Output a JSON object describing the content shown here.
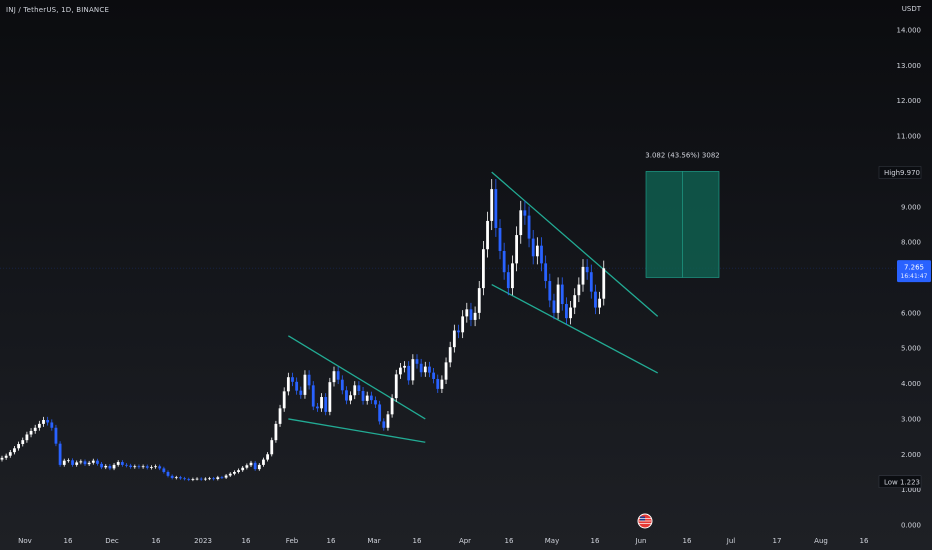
{
  "symbol_title": "INJ / TetherUS, 1D, BINANCE",
  "currency": "USDT",
  "colors": {
    "background": "#131519",
    "up_candle": "#ffffff",
    "down_candle": "#2962ff",
    "trendline": "#22ab94",
    "box_fill": "#0f5e4f",
    "box_border": "#22ab94",
    "price_label_bg": "#2962ff",
    "marker_bg": "#0f1216",
    "axis_text": "#d1d4dc"
  },
  "chart_data": {
    "type": "candlestick",
    "x_tick_labels": [
      "Nov",
      "16",
      "Dec",
      "16",
      "2023",
      "16",
      "Feb",
      "16",
      "Mar",
      "16",
      "Apr",
      "16",
      "May",
      "16",
      "Jun",
      "16",
      "Jul",
      "17",
      "Aug",
      "16"
    ],
    "y_tick_labels": [
      "0.000",
      "1.000",
      "2.000",
      "3.000",
      "4.000",
      "5.000",
      "6.000",
      "7.000",
      "8.000",
      "9.000",
      "10.000",
      "11.000",
      "12.000",
      "13.000",
      "14.000"
    ],
    "y_ticks": [
      0,
      1,
      2,
      3,
      4,
      5,
      6,
      7,
      8,
      9,
      10,
      11,
      12,
      13,
      14
    ],
    "ylim": [
      0,
      14.5
    ],
    "ohlc_close": [
      1.9,
      1.96,
      2.06,
      2.17,
      2.29,
      2.4,
      2.56,
      2.66,
      2.75,
      2.86,
      2.97,
      2.9,
      2.75,
      2.3,
      1.7,
      1.82,
      1.83,
      1.7,
      1.77,
      1.8,
      1.72,
      1.76,
      1.82,
      1.73,
      1.63,
      1.67,
      1.6,
      1.7,
      1.78,
      1.7,
      1.68,
      1.64,
      1.66,
      1.64,
      1.66,
      1.62,
      1.64,
      1.66,
      1.6,
      1.5,
      1.39,
      1.33,
      1.35,
      1.32,
      1.3,
      1.28,
      1.3,
      1.31,
      1.29,
      1.31,
      1.32,
      1.3,
      1.35,
      1.34,
      1.4,
      1.45,
      1.5,
      1.55,
      1.62,
      1.69,
      1.76,
      1.58,
      1.7,
      1.85,
      2.0,
      2.4,
      2.86,
      3.3,
      3.78,
      4.18,
      4.05,
      3.8,
      3.68,
      4.25,
      3.95,
      3.35,
      3.3,
      3.62,
      3.2,
      4.04,
      4.35,
      4.11,
      3.81,
      3.52,
      3.67,
      3.95,
      3.79,
      3.51,
      3.66,
      3.53,
      3.41,
      2.93,
      2.75,
      3.13,
      3.59,
      4.26,
      4.45,
      4.5,
      4.09,
      4.69,
      4.56,
      4.32,
      4.48,
      4.31,
      4.13,
      3.85,
      4.11,
      4.6,
      5.03,
      5.5,
      5.45,
      5.9,
      6.1,
      5.8,
      6.0,
      6.7,
      7.8,
      8.6,
      9.5,
      8.4,
      7.75,
      7.15,
      6.7,
      7.4,
      8.2,
      8.9,
      8.75,
      8.1,
      7.6,
      7.9,
      7.4,
      6.9,
      6.35,
      6.0,
      6.8,
      6.25,
      5.85,
      6.15,
      6.5,
      6.8,
      7.3,
      7.15,
      6.6,
      6.15,
      6.4,
      7.26
    ],
    "range_high": {
      "label": "High",
      "value": 9.97,
      "display": "9.970"
    },
    "range_low": {
      "label": "Low",
      "value": 1.223,
      "display": "1.223"
    },
    "last_price": {
      "value": 7.265,
      "display": "7.265",
      "countdown": "16:41:47"
    },
    "measure_box": {
      "label": "3.082 (43.56%) 3082",
      "bottom": 7.0,
      "top": 10.0
    },
    "patterns": [
      {
        "name": "falling-wedge-1",
        "upper": [
          [
            69,
            5.35
          ],
          [
            102,
            3.0
          ]
        ],
        "lower": [
          [
            69,
            3.0
          ],
          [
            102,
            2.34
          ]
        ]
      },
      {
        "name": "falling-wedge-2",
        "upper": [
          [
            118,
            9.98
          ],
          [
            158,
            5.9
          ]
        ],
        "lower": [
          [
            118,
            6.8
          ],
          [
            158,
            4.3
          ]
        ]
      }
    ]
  }
}
